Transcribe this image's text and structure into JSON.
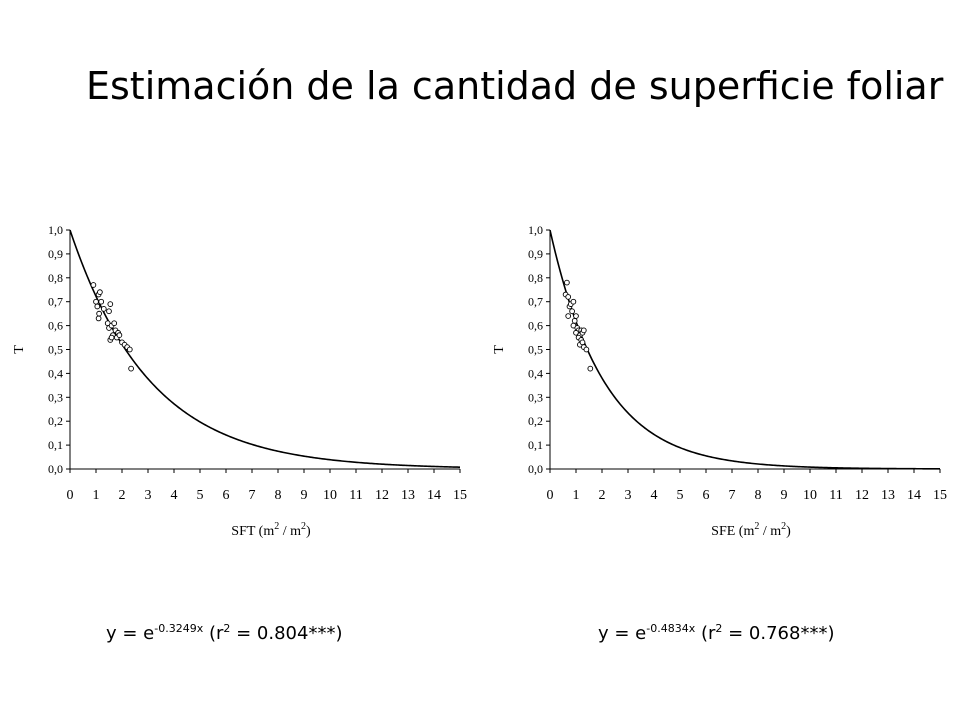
{
  "title": "Estimación de la cantidad de superficie foliar",
  "chart_data": [
    {
      "type": "scatter",
      "ylabel": "T",
      "xlabel_main": "SFT (m",
      "xlabel_sup1": "2",
      "xlabel_mid": " / m",
      "xlabel_sup2": "2",
      "xlabel_end": ")",
      "xlim": [
        0,
        15
      ],
      "ylim": [
        0,
        1
      ],
      "x_ticks": [
        "0",
        "1",
        "2",
        "3",
        "4",
        "5",
        "6",
        "7",
        "8",
        "9",
        "10",
        "11",
        "12",
        "13",
        "14",
        "15"
      ],
      "y_ticks": [
        "0,0",
        "0,1",
        "0,2",
        "0,3",
        "0,4",
        "0,5",
        "0,6",
        "0,7",
        "0,8",
        "0,9",
        "1,0"
      ],
      "fit": {
        "type": "exponential",
        "k": -0.3249
      },
      "equation": {
        "base": "y = e",
        "exponent": "-0.3249x",
        "r_open": " (r",
        "r_sup": "2",
        "r_value": " = 0.804***)"
      },
      "points": [
        {
          "x": 0.9,
          "y": 0.77
        },
        {
          "x": 1.0,
          "y": 0.7
        },
        {
          "x": 1.05,
          "y": 0.68
        },
        {
          "x": 1.1,
          "y": 0.73
        },
        {
          "x": 1.15,
          "y": 0.74
        },
        {
          "x": 1.12,
          "y": 0.65
        },
        {
          "x": 1.2,
          "y": 0.7
        },
        {
          "x": 1.1,
          "y": 0.63
        },
        {
          "x": 1.3,
          "y": 0.67
        },
        {
          "x": 1.5,
          "y": 0.66
        },
        {
          "x": 1.55,
          "y": 0.69
        },
        {
          "x": 1.45,
          "y": 0.61
        },
        {
          "x": 1.5,
          "y": 0.59
        },
        {
          "x": 1.6,
          "y": 0.6
        },
        {
          "x": 1.7,
          "y": 0.61
        },
        {
          "x": 1.75,
          "y": 0.58
        },
        {
          "x": 1.65,
          "y": 0.56
        },
        {
          "x": 1.55,
          "y": 0.54
        },
        {
          "x": 1.6,
          "y": 0.55
        },
        {
          "x": 1.8,
          "y": 0.55
        },
        {
          "x": 1.85,
          "y": 0.57
        },
        {
          "x": 1.9,
          "y": 0.56
        },
        {
          "x": 2.0,
          "y": 0.53
        },
        {
          "x": 2.1,
          "y": 0.52
        },
        {
          "x": 2.2,
          "y": 0.51
        },
        {
          "x": 2.3,
          "y": 0.5
        },
        {
          "x": 2.35,
          "y": 0.42
        }
      ]
    },
    {
      "type": "scatter",
      "ylabel": "T",
      "xlabel_main": "SFE (m",
      "xlabel_sup1": "2",
      "xlabel_mid": " / m",
      "xlabel_sup2": "2",
      "xlabel_end": ")",
      "xlim": [
        0,
        15
      ],
      "ylim": [
        0,
        1
      ],
      "x_ticks": [
        "0",
        "1",
        "2",
        "3",
        "4",
        "5",
        "6",
        "7",
        "8",
        "9",
        "10",
        "11",
        "12",
        "13",
        "14",
        "15"
      ],
      "y_ticks": [
        "0,0",
        "0,1",
        "0,2",
        "0,3",
        "0,4",
        "0,5",
        "0,6",
        "0,7",
        "0,8",
        "0,9",
        "1,0"
      ],
      "fit": {
        "type": "exponential",
        "k": -0.4834
      },
      "equation": {
        "base": "y = e",
        "exponent": "-0.4834x",
        "r_open": " (r",
        "r_sup": "2",
        "r_value": " = 0.768***)"
      },
      "points": [
        {
          "x": 0.6,
          "y": 0.73
        },
        {
          "x": 0.65,
          "y": 0.78
        },
        {
          "x": 0.7,
          "y": 0.72
        },
        {
          "x": 0.75,
          "y": 0.68
        },
        {
          "x": 0.7,
          "y": 0.64
        },
        {
          "x": 0.8,
          "y": 0.69
        },
        {
          "x": 0.85,
          "y": 0.66
        },
        {
          "x": 0.9,
          "y": 0.7
        },
        {
          "x": 0.95,
          "y": 0.62
        },
        {
          "x": 1.0,
          "y": 0.64
        },
        {
          "x": 0.9,
          "y": 0.6
        },
        {
          "x": 1.05,
          "y": 0.59
        },
        {
          "x": 1.1,
          "y": 0.58
        },
        {
          "x": 1.0,
          "y": 0.57
        },
        {
          "x": 1.2,
          "y": 0.58
        },
        {
          "x": 1.15,
          "y": 0.56
        },
        {
          "x": 1.25,
          "y": 0.57
        },
        {
          "x": 1.3,
          "y": 0.58
        },
        {
          "x": 1.1,
          "y": 0.55
        },
        {
          "x": 1.2,
          "y": 0.54
        },
        {
          "x": 1.15,
          "y": 0.52
        },
        {
          "x": 1.25,
          "y": 0.53
        },
        {
          "x": 1.3,
          "y": 0.51
        },
        {
          "x": 1.4,
          "y": 0.5
        },
        {
          "x": 1.55,
          "y": 0.42
        }
      ]
    }
  ]
}
